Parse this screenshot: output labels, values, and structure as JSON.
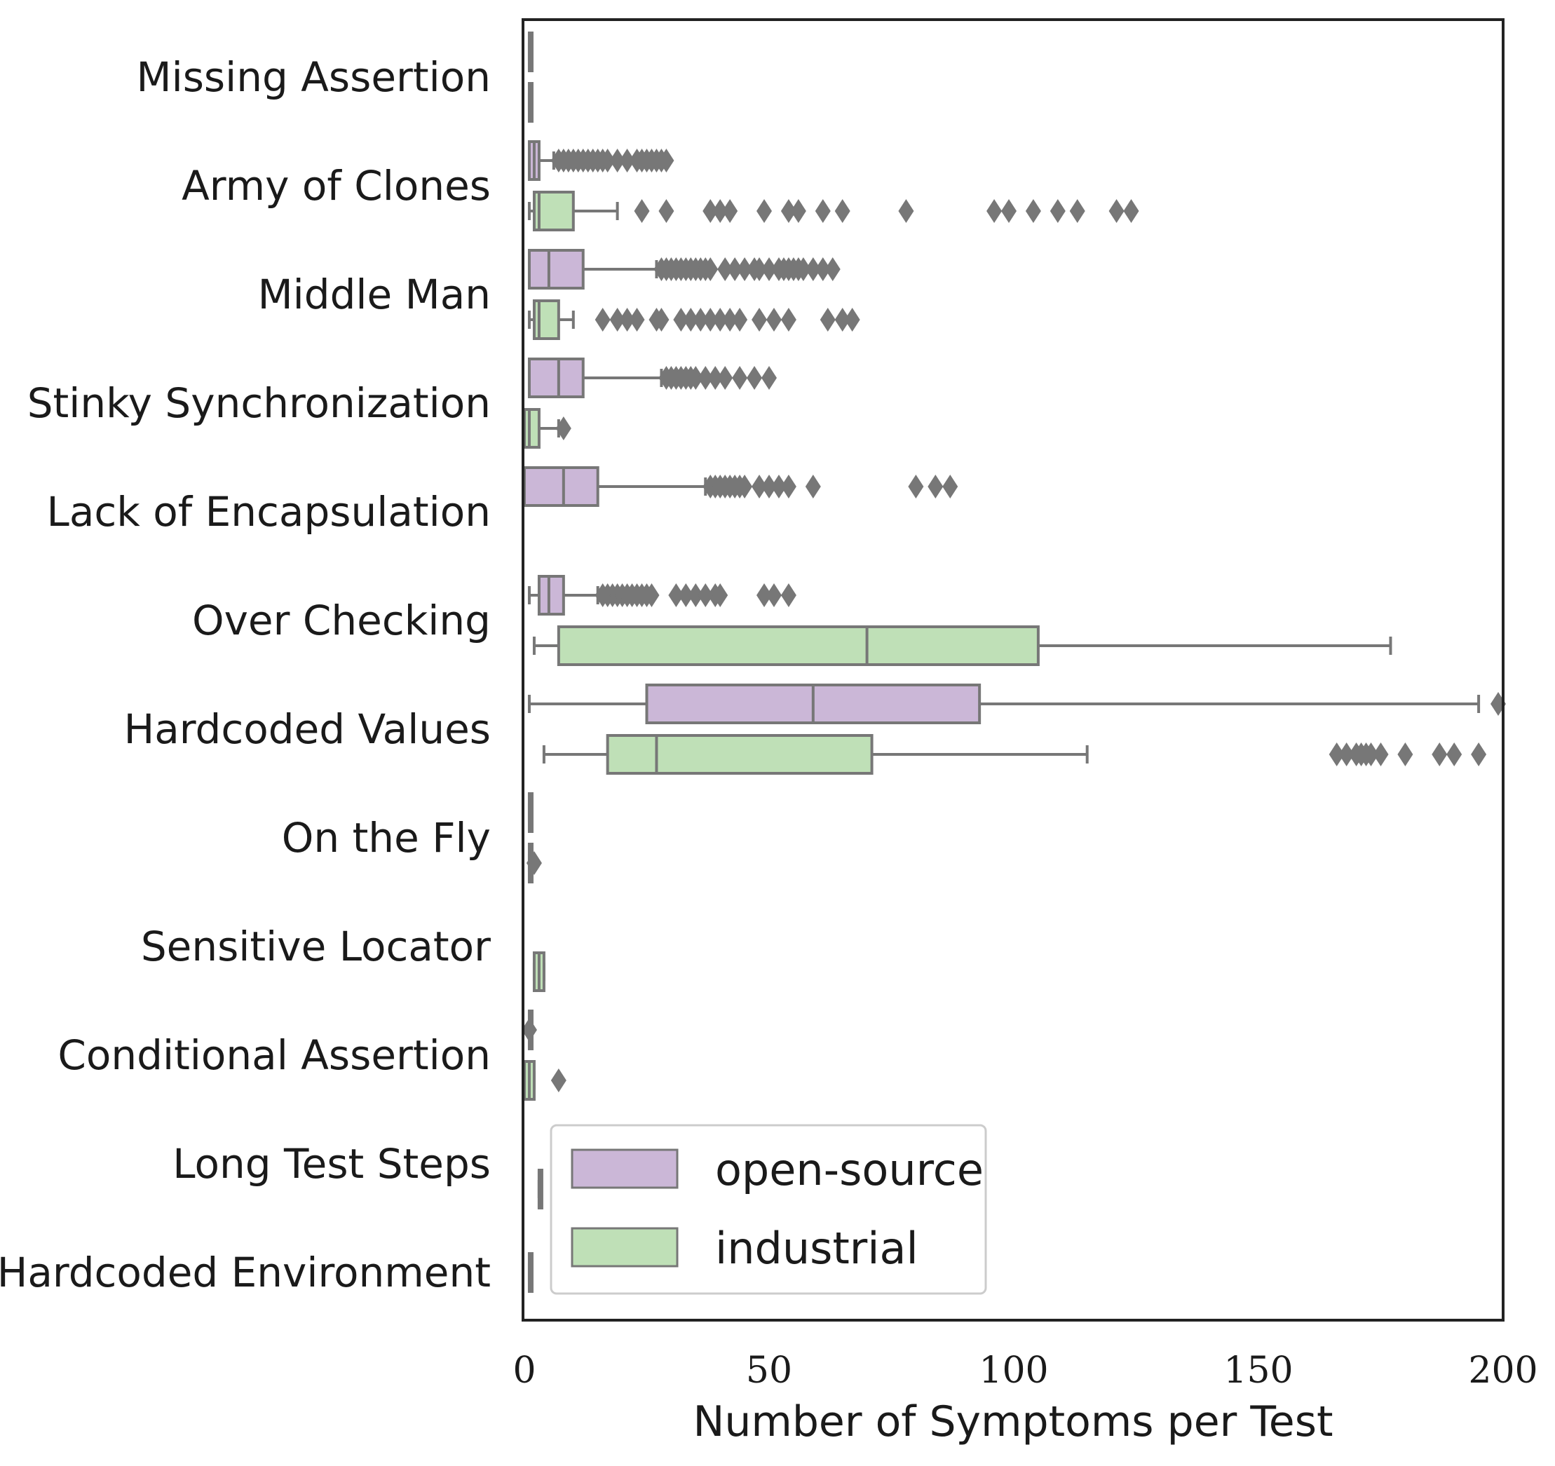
{
  "chart_data": {
    "type": "boxplot",
    "orientation": "horizontal",
    "xlabel": "Number of Symptoms per Test",
    "ylabel": "",
    "xlim": [
      0,
      200
    ],
    "xticks": [
      "0",
      "50",
      "100",
      "150",
      "200"
    ],
    "xtick_values": [
      0,
      50,
      100,
      150,
      200
    ],
    "legend_position": "bottom-left",
    "series": [
      {
        "key": "open",
        "name": "open-source",
        "color": "#cbb7d7"
      },
      {
        "key": "ind",
        "name": "industrial",
        "color": "#bfe0b7"
      }
    ],
    "categories": [
      "Missing Assertion",
      "Army of Clones",
      "Middle Man",
      "Stinky Synchronization",
      "Lack of Encapsulation",
      "Over Checking",
      "Hardcoded Values",
      "On the Fly",
      "Sensitive Locator",
      "Conditional Assertion",
      "Long Test Steps",
      "Hardcoded Environment"
    ],
    "boxes": [
      {
        "category": "Missing Assertion",
        "series": "open",
        "min": 1,
        "q1": 1,
        "median": 1,
        "q3": 1,
        "max": 1,
        "outliers": []
      },
      {
        "category": "Missing Assertion",
        "series": "ind",
        "min": 1,
        "q1": 1,
        "median": 1,
        "q3": 1,
        "max": 1,
        "outliers": []
      },
      {
        "category": "Army of Clones",
        "series": "open",
        "min": 1,
        "q1": 1,
        "median": 2,
        "q3": 3,
        "max": 6,
        "outliers": [
          7,
          8,
          9,
          10,
          11,
          12,
          13,
          14,
          15,
          16,
          17,
          19,
          21,
          23,
          24,
          25,
          26,
          27,
          28,
          29
        ]
      },
      {
        "category": "Army of Clones",
        "series": "ind",
        "min": 1,
        "q1": 2,
        "median": 3,
        "q3": 10,
        "max": 19,
        "outliers": [
          24,
          29,
          38,
          40,
          42,
          49,
          54,
          56,
          61,
          65,
          78,
          96,
          99,
          104,
          109,
          113,
          121,
          124
        ]
      },
      {
        "category": "Middle Man",
        "series": "open",
        "min": 1,
        "q1": 1,
        "median": 5,
        "q3": 12,
        "max": 27,
        "outliers": [
          28,
          29,
          30,
          31,
          32,
          33,
          34,
          35,
          36,
          37,
          38,
          41,
          43,
          45,
          47,
          48,
          50,
          52,
          53,
          54,
          55,
          56,
          57,
          59,
          61,
          63
        ]
      },
      {
        "category": "Middle Man",
        "series": "ind",
        "min": 1,
        "q1": 2,
        "median": 3,
        "q3": 7,
        "max": 10,
        "outliers": [
          16,
          19,
          21,
          23,
          27,
          28,
          32,
          34,
          36,
          38,
          40,
          42,
          44,
          48,
          51,
          54,
          62,
          65,
          67
        ]
      },
      {
        "category": "Stinky Synchronization",
        "series": "open",
        "min": 1,
        "q1": 1,
        "median": 7,
        "q3": 12,
        "max": 28,
        "outliers": [
          29,
          30,
          31,
          32,
          33,
          34,
          35,
          37,
          39,
          41,
          44,
          47,
          50
        ]
      },
      {
        "category": "Stinky Synchronization",
        "series": "ind",
        "min": 0,
        "q1": 0,
        "median": 1,
        "q3": 3,
        "max": 7,
        "outliers": [
          8
        ]
      },
      {
        "category": "Lack of Encapsulation",
        "series": "open",
        "min": 0,
        "q1": 0,
        "median": 8,
        "q3": 15,
        "max": 37,
        "outliers": [
          38,
          39,
          40,
          41,
          42,
          43,
          44,
          45,
          48,
          50,
          52,
          54,
          59,
          80,
          84,
          87
        ]
      },
      {
        "category": "Over Checking",
        "series": "open",
        "min": 1,
        "q1": 3,
        "median": 5,
        "q3": 8,
        "max": 15,
        "outliers": [
          16,
          17,
          18,
          19,
          20,
          21,
          22,
          23,
          24,
          25,
          26,
          31,
          33,
          35,
          37,
          39,
          40,
          49,
          51,
          54
        ]
      },
      {
        "category": "Over Checking",
        "series": "ind",
        "min": 2,
        "q1": 7,
        "median": 70,
        "q3": 105,
        "max": 177,
        "outliers": []
      },
      {
        "category": "Hardcoded Values",
        "series": "open",
        "min": 1,
        "q1": 25,
        "median": 59,
        "q3": 93,
        "max": 195,
        "outliers": [
          199
        ]
      },
      {
        "category": "Hardcoded Values",
        "series": "ind",
        "min": 4,
        "q1": 17,
        "median": 27,
        "q3": 71,
        "max": 115,
        "outliers": [
          166,
          168,
          170,
          171,
          172,
          173,
          175,
          180,
          187,
          190,
          195
        ]
      },
      {
        "category": "On the Fly",
        "series": "open",
        "min": 1,
        "q1": 1,
        "median": 1,
        "q3": 1,
        "max": 1,
        "outliers": []
      },
      {
        "category": "On the Fly",
        "series": "ind",
        "min": 1,
        "q1": 1,
        "median": 1,
        "q3": 1,
        "max": 1,
        "outliers": [
          2
        ]
      },
      {
        "category": "Sensitive Locator",
        "series": "ind",
        "min": 2,
        "q1": 2,
        "median": 3,
        "q3": 4,
        "max": 4,
        "outliers": []
      },
      {
        "category": "Conditional Assertion",
        "series": "open",
        "min": 1,
        "q1": 1,
        "median": 1,
        "q3": 1,
        "max": 1,
        "outliers": [
          1
        ]
      },
      {
        "category": "Conditional Assertion",
        "series": "ind",
        "min": 0,
        "q1": 0,
        "median": 1,
        "q3": 2,
        "max": 2,
        "outliers": [
          7
        ]
      },
      {
        "category": "Long Test Steps",
        "series": "ind",
        "min": 3,
        "q1": 3,
        "median": 3,
        "q3": 3,
        "max": 3,
        "outliers": []
      },
      {
        "category": "Hardcoded Environment",
        "series": "center",
        "min": 1,
        "q1": 1,
        "median": 1,
        "q3": 1,
        "max": 1,
        "outliers": []
      }
    ]
  }
}
